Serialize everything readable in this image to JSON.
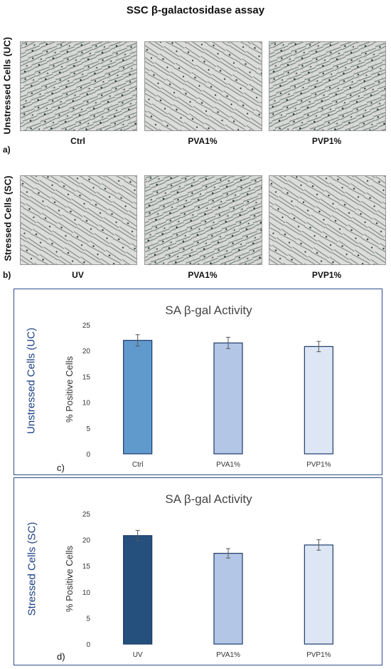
{
  "figure": {
    "title": "SSC β-galactosidase assay",
    "row_a_label": "Unstressed Cells (UC)",
    "row_b_label": "Stressed Cells (SC)",
    "panel_a": "a)",
    "panel_b": "b)",
    "panel_c": "c)",
    "panel_d": "d)",
    "row_a_captions": [
      "Ctrl",
      "PVA1%",
      "PVP1%"
    ],
    "row_b_captions": [
      "UV",
      "PVA1%",
      "PVP1%"
    ]
  },
  "charts_meta": {
    "uc_side_label": "Unstressed Cells (UC)",
    "sc_side_label": "Stressed Cells (SC)"
  },
  "chart_data": [
    {
      "type": "bar",
      "title": "SA β-gal Activity",
      "ylabel": "% Positive Cells",
      "xlabel": "",
      "categories": [
        "Ctrl",
        "PVA1%",
        "PVP1%"
      ],
      "values": [
        22.0,
        21.5,
        20.8
      ],
      "errors": [
        1.1,
        1.1,
        1.0
      ],
      "ylim": [
        0,
        25
      ],
      "yticks": [
        0,
        5,
        10,
        15,
        20,
        25
      ],
      "colors": [
        "#6099cc",
        "#b3c6e6",
        "#dde6f4"
      ],
      "grid": false
    },
    {
      "type": "bar",
      "title": "SA β-gal Activity",
      "ylabel": "% Positive Cells",
      "xlabel": "",
      "categories": [
        "UV",
        "PVA1%",
        "PVP1%"
      ],
      "values": [
        20.8,
        17.4,
        19.0
      ],
      "errors": [
        1.0,
        0.9,
        1.0
      ],
      "ylim": [
        0,
        25
      ],
      "yticks": [
        0,
        5,
        10,
        15,
        20,
        25
      ],
      "colors": [
        "#25507d",
        "#b3c6e6",
        "#dde6f4"
      ],
      "grid": false
    }
  ]
}
